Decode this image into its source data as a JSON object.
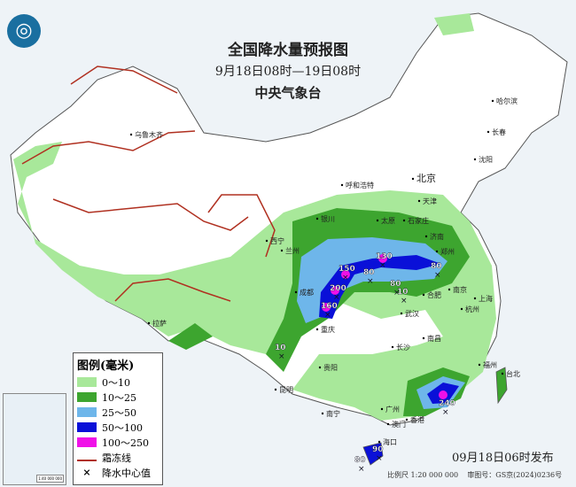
{
  "header": {
    "title": "全国降水量预报图",
    "period": "9月18日08时—19日08时",
    "issuer": "中央气象台"
  },
  "legend": {
    "title": "图例(毫米)",
    "items": [
      {
        "label": "0～10",
        "color": "#a8e89a"
      },
      {
        "label": "10～25",
        "color": "#3da52f"
      },
      {
        "label": "25～50",
        "color": "#6eb6ea"
      },
      {
        "label": "50～100",
        "color": "#0a10d8"
      },
      {
        "label": "100～250",
        "color": "#f010e8"
      },
      {
        "label": "霜冻线",
        "color": "#b03020"
      },
      {
        "label": "降水中心值",
        "icon": "x-mark-icon"
      }
    ]
  },
  "cities": [
    {
      "name": "乌鲁木齐"
    },
    {
      "name": "拉萨"
    },
    {
      "name": "西宁"
    },
    {
      "name": "兰州"
    },
    {
      "name": "银川"
    },
    {
      "name": "呼和浩特"
    },
    {
      "name": "北京"
    },
    {
      "name": "天津"
    },
    {
      "name": "石家庄"
    },
    {
      "name": "太原"
    },
    {
      "name": "济南"
    },
    {
      "name": "郑州"
    },
    {
      "name": "成都"
    },
    {
      "name": "重庆"
    },
    {
      "name": "贵阳"
    },
    {
      "name": "昆明"
    },
    {
      "name": "南宁"
    },
    {
      "name": "广州"
    },
    {
      "name": "澳门"
    },
    {
      "name": "香港"
    },
    {
      "name": "海口"
    },
    {
      "name": "长沙"
    },
    {
      "name": "武汉"
    },
    {
      "name": "南昌"
    },
    {
      "name": "合肥"
    },
    {
      "name": "南京"
    },
    {
      "name": "上海"
    },
    {
      "name": "杭州"
    },
    {
      "name": "福州"
    },
    {
      "name": "台北"
    },
    {
      "name": "哈尔滨"
    },
    {
      "name": "长春"
    },
    {
      "name": "沈阳"
    }
  ],
  "precip_centers": [
    {
      "value": "130"
    },
    {
      "value": "150"
    },
    {
      "value": "80"
    },
    {
      "value": "80"
    },
    {
      "value": "80"
    },
    {
      "value": "200"
    },
    {
      "value": "160"
    },
    {
      "value": "10"
    },
    {
      "value": "10"
    },
    {
      "value": "240"
    },
    {
      "value": "90"
    },
    {
      "value": "80"
    }
  ],
  "footer": {
    "published": "09月18日06时发布",
    "scale": "比例尺 1:20 000 000",
    "approval": "审图号：GS京(2024)0236号"
  }
}
